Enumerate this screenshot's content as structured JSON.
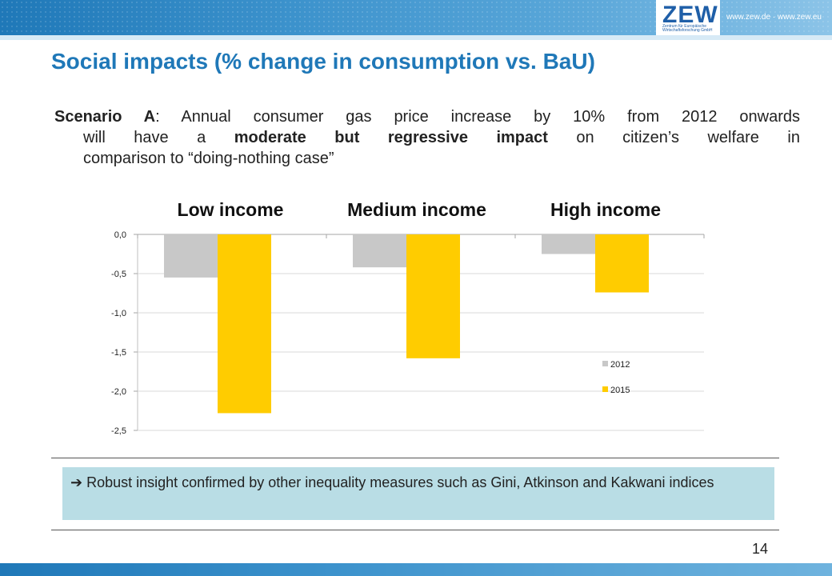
{
  "header": {
    "logo": "ZEW",
    "logo_subtitle": "Zentrum für Europäische Wirtschaftsforschung GmbH",
    "url": "www.zew.de · www.zew.eu"
  },
  "slide": {
    "title": "Social impacts (% change in consumption vs. BaU)",
    "scenario_label": "Scenario A",
    "text_a": ": Annual consumer gas price increase by 10% from 2012 onwards",
    "text_b": "will have a ",
    "text_bold": "moderate but regressive impact",
    "text_c": " on citizen’s welfare in",
    "text_d": "comparison to “doing-nothing case”",
    "insight_arrow": "➔",
    "insight": "Robust insight confirmed by other inequality measures such as Gini, Atkinson and Kakwani indices",
    "page_number": "14"
  },
  "chart_data": {
    "type": "bar",
    "categories": [
      "Low income",
      "Medium income",
      "High income"
    ],
    "series": [
      {
        "name": "2012",
        "values": [
          -0.55,
          -0.42,
          -0.25
        ],
        "color": "#c8c8c8"
      },
      {
        "name": "2015",
        "values": [
          -2.28,
          -1.58,
          -0.74
        ],
        "color": "#ffcc00"
      }
    ],
    "yticks": [
      "0,0",
      "-0,5",
      "-1,0",
      "-1,5",
      "-2,0",
      "-2,5"
    ],
    "ylim": [
      -2.5,
      0
    ],
    "legend_position": "right",
    "title": "",
    "xlabel": "",
    "ylabel": ""
  }
}
